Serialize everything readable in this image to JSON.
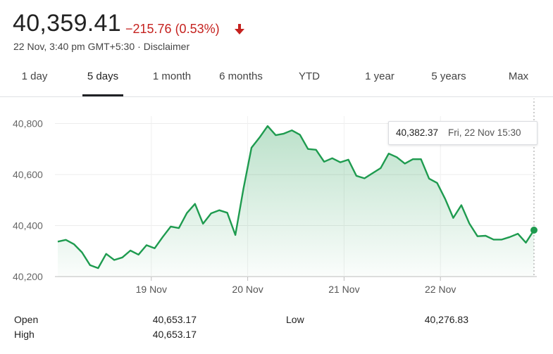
{
  "header": {
    "price": "40,359.41",
    "change": "−215.76 (0.53%)",
    "timestamp": "22 Nov, 3:40 pm GMT+5:30",
    "disclaimer": "Disclaimer",
    "change_color": "#c5221f"
  },
  "tabs": [
    {
      "label": "1 day",
      "active": false
    },
    {
      "label": "5 days",
      "active": true
    },
    {
      "label": "1 month",
      "active": false
    },
    {
      "label": "6 months",
      "active": false
    },
    {
      "label": "YTD",
      "active": false
    },
    {
      "label": "1 year",
      "active": false
    },
    {
      "label": "5 years",
      "active": false
    },
    {
      "label": "Max",
      "active": false
    }
  ],
  "tooltip": {
    "value": "40,382.37",
    "date": "Fri, 22 Nov 15:30"
  },
  "chart_data": {
    "type": "area",
    "title": "",
    "xlabel": "",
    "ylabel": "",
    "x_tick_labels": [
      "19 Nov",
      "20 Nov",
      "21 Nov",
      "22 Nov"
    ],
    "y_tick_labels": [
      "40,800",
      "40,600",
      "40,400",
      "40,200"
    ],
    "y_ticks": [
      40800,
      40600,
      40400,
      40200
    ],
    "ylim": [
      40200,
      40815
    ],
    "day_count": 5,
    "line_color": "#1e9b4f",
    "grid": true,
    "series": [
      {
        "values": [
          40337,
          40344,
          40327,
          40295,
          40245,
          40233,
          40289,
          40265,
          40275,
          40302,
          40286,
          40323,
          40311,
          40355,
          40396,
          40390,
          40449,
          40485,
          40407,
          40448,
          40460,
          40450,
          40363,
          40543,
          40705,
          40745,
          40790,
          40754,
          40760,
          40773,
          40756,
          40700,
          40697,
          40650,
          40664,
          40648,
          40658,
          40595,
          40585,
          40605,
          40625,
          40682,
          40668,
          40643,
          40660,
          40660,
          40584,
          40567,
          40504,
          40430,
          40480,
          40408,
          40358,
          40360,
          40345,
          40345,
          40355,
          40368,
          40333,
          40382
        ]
      }
    ]
  },
  "stats": {
    "open_label": "Open",
    "open_value": "40,653.17",
    "high_label": "High",
    "high_value": "40,653.17",
    "low_label": "Low",
    "low_value": "40,276.83"
  }
}
